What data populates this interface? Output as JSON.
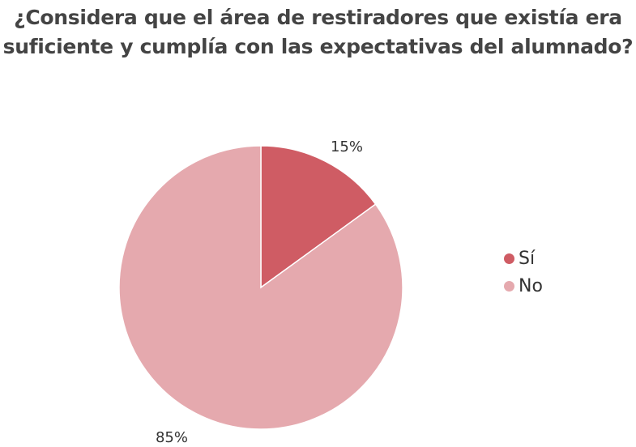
{
  "chart_data": {
    "type": "pie",
    "title_lines": [
      "¿Considera que el área de restiradores que existía era",
      "suficiente y cumplía con las expectativas del alumnado?"
    ],
    "slices": [
      {
        "name": "Sí",
        "value": 15,
        "label": "15%",
        "color": "#cf5c64"
      },
      {
        "name": "No",
        "value": 85,
        "label": "85%",
        "color": "#e5a9ae"
      }
    ],
    "legend_placement": "right"
  }
}
